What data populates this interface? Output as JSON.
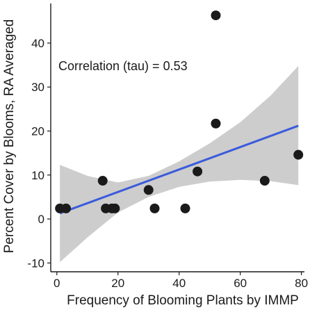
{
  "chart_data": {
    "type": "scatter",
    "title": "",
    "xlabel": "Frequency of Blooming Plants by IMMP",
    "ylabel": "Percent Cover by Blooms, RA Averaged",
    "annotation": "Correlation (tau) = 0.53",
    "xlim": [
      -2,
      81
    ],
    "ylim": [
      -12,
      49
    ],
    "x_ticks": [
      0,
      20,
      40,
      60,
      80
    ],
    "y_ticks": [
      -10,
      0,
      10,
      20,
      30,
      40
    ],
    "grid": false,
    "legend": "none",
    "points": [
      {
        "x": 1,
        "y": 2.4
      },
      {
        "x": 3,
        "y": 2.4
      },
      {
        "x": 15,
        "y": 8.7
      },
      {
        "x": 16,
        "y": 2.4
      },
      {
        "x": 18,
        "y": 2.4
      },
      {
        "x": 19,
        "y": 2.4
      },
      {
        "x": 30,
        "y": 6.6
      },
      {
        "x": 32,
        "y": 2.4
      },
      {
        "x": 42,
        "y": 2.4
      },
      {
        "x": 46,
        "y": 10.8
      },
      {
        "x": 52,
        "y": 46.3
      },
      {
        "x": 52,
        "y": 21.7
      },
      {
        "x": 68,
        "y": 8.7
      },
      {
        "x": 79,
        "y": 14.6
      }
    ],
    "fit_line": {
      "x": [
        1,
        79
      ],
      "y": [
        1.3,
        21.2
      ]
    },
    "confidence_band": {
      "x": [
        1,
        10,
        20,
        30,
        40,
        50,
        60,
        70,
        79
      ],
      "lower": [
        -9.8,
        -4.2,
        1.5,
        5.0,
        7.3,
        8.5,
        8.9,
        8.6,
        7.7
      ],
      "upper": [
        12.3,
        9.8,
        8.3,
        9.8,
        13.1,
        17.2,
        22.0,
        28.1,
        34.8
      ]
    },
    "colors": {
      "points": "#1a1a1a",
      "fit_line": "#3b5bdb",
      "band": "#c8c8c8",
      "axis": "#1a1a1a"
    }
  }
}
